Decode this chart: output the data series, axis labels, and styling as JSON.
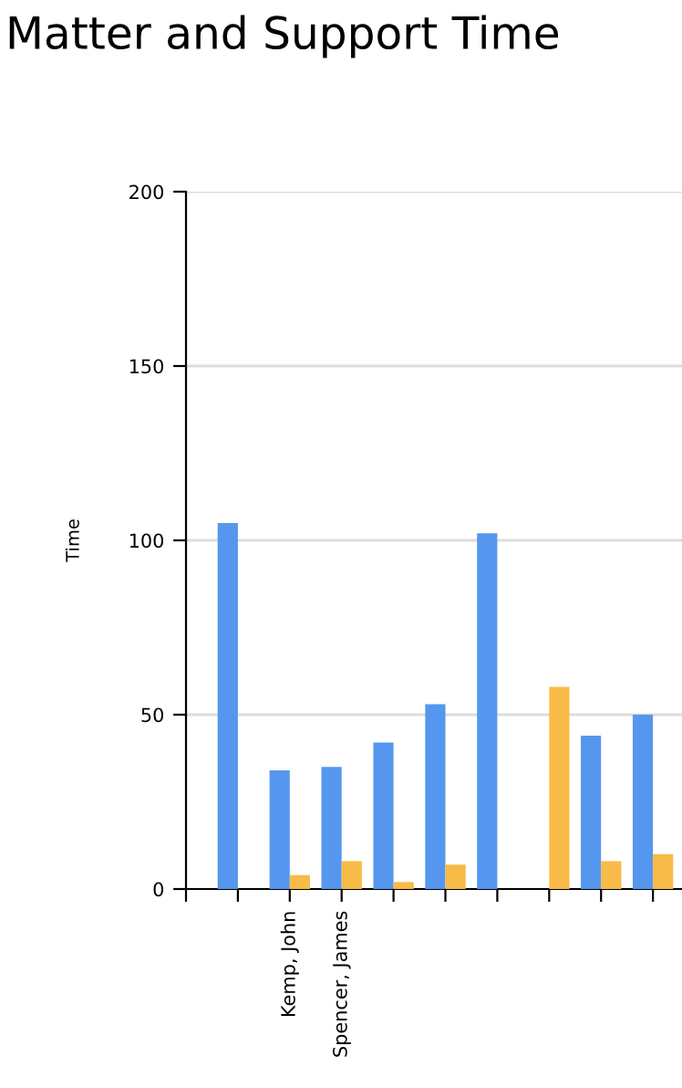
{
  "chart_data": {
    "type": "bar",
    "title": "Matter and Support Time",
    "ylabel": "Time",
    "categories": [
      null,
      "Kemp, John",
      "Spencer, James",
      null,
      null,
      null,
      null,
      null,
      null
    ],
    "series": [
      {
        "color": "#5597ee",
        "values": [
          105,
          34,
          35,
          42,
          53,
          102,
          null,
          44,
          50
        ]
      },
      {
        "color": "#f8bb48",
        "values": [
          null,
          4,
          8,
          2,
          7,
          null,
          58,
          8,
          10
        ]
      }
    ],
    "ylim": [
      0,
      200
    ],
    "yticks": [
      0,
      50,
      100,
      150,
      200
    ],
    "grid": "y",
    "legend": false
  }
}
